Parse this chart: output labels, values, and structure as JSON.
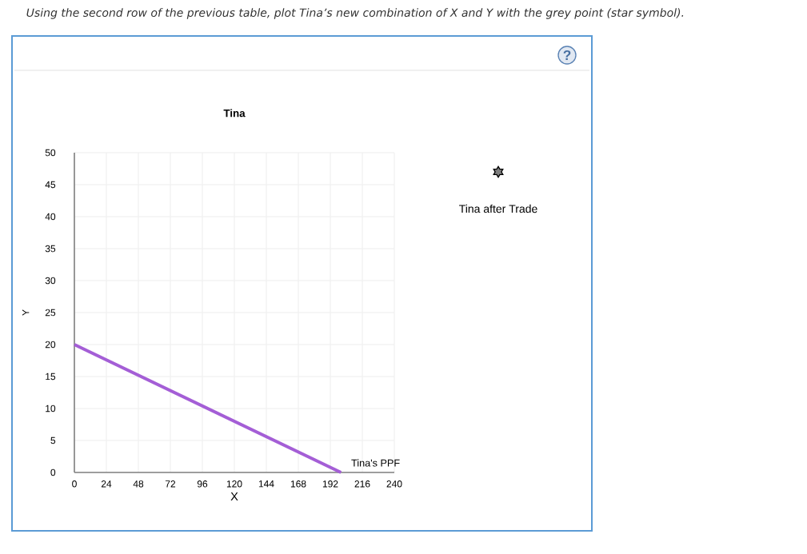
{
  "chart_data": {
    "type": "line",
    "title": "Tina",
    "xlabel": "X",
    "ylabel": "Y",
    "annotations": [
      "Using the second row of the previous table, plot Tina’s new combination of X and Y with the grey point (star symbol).",
      "Tina after Trade",
      "?"
    ],
    "xlim": [
      0,
      240
    ],
    "ylim": [
      0,
      50
    ],
    "xticks": [
      0,
      24,
      48,
      72,
      96,
      120,
      144,
      168,
      192,
      216,
      240
    ],
    "yticks": [
      0,
      5,
      10,
      15,
      20,
      25,
      30,
      35,
      40,
      45,
      50
    ],
    "grid": true,
    "marker": "none",
    "line_style": "solid",
    "series": [
      {
        "name": "Tina's PPF",
        "color": "#a45ed6",
        "x": [
          0,
          200
        ],
        "values": [
          20,
          0
        ]
      }
    ]
  }
}
